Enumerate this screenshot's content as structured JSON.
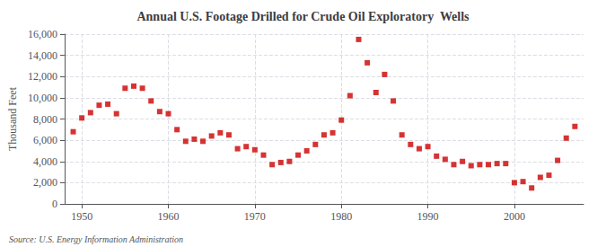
{
  "chart_data": {
    "type": "scatter",
    "title": "Annual U.S. Footage Drilled for Crude Oil Exploratory  Wells",
    "ylabel": "Thousand Feet",
    "annotations": [
      "Source: U.S. Energy Information Administration"
    ],
    "x": [
      1949,
      1950,
      1951,
      1952,
      1953,
      1954,
      1955,
      1956,
      1957,
      1958,
      1959,
      1960,
      1961,
      1962,
      1963,
      1964,
      1965,
      1966,
      1967,
      1968,
      1969,
      1970,
      1971,
      1972,
      1973,
      1974,
      1975,
      1976,
      1977,
      1978,
      1979,
      1980,
      1981,
      1982,
      1983,
      1984,
      1985,
      1986,
      1987,
      1988,
      1989,
      1990,
      1991,
      1992,
      1993,
      1994,
      1995,
      1996,
      1997,
      1998,
      1999,
      2000,
      2001,
      2002,
      2003,
      2004,
      2005,
      2006,
      2007
    ],
    "values": [
      6800,
      8100,
      8600,
      9300,
      9400,
      8500,
      10900,
      11100,
      10900,
      9700,
      8700,
      8500,
      7000,
      5900,
      6100,
      5900,
      6400,
      6700,
      6500,
      5200,
      5400,
      5100,
      4600,
      3700,
      3900,
      4000,
      4600,
      5000,
      5600,
      6500,
      6700,
      7900,
      10200,
      15500,
      13300,
      10500,
      12200,
      9700,
      6500,
      5600,
      5200,
      5400,
      4500,
      4200,
      3700,
      4000,
      3600,
      3700,
      3700,
      3800,
      3800,
      2000,
      2100,
      1500,
      2500,
      2700,
      4100,
      6200,
      7300
    ],
    "color": "#cc0000",
    "marker": "square",
    "xlim": [
      1948,
      2008
    ],
    "xticks": [
      1950,
      1960,
      1970,
      1980,
      1990,
      2000
    ],
    "ylim": [
      0,
      16000
    ],
    "yticks": [
      0,
      {
        "value": 2000,
        "label": "2,000"
      },
      {
        "value": 4000,
        "label": "4,000"
      },
      {
        "value": 6000,
        "label": "6,000"
      },
      {
        "value": 8000,
        "label": "8,000"
      },
      {
        "value": 10000,
        "label": "10,000"
      },
      {
        "value": 12000,
        "label": "12,000"
      },
      {
        "value": 14000,
        "label": "14,000"
      },
      {
        "value": 16000,
        "label": "16,000"
      }
    ],
    "grid": true
  }
}
